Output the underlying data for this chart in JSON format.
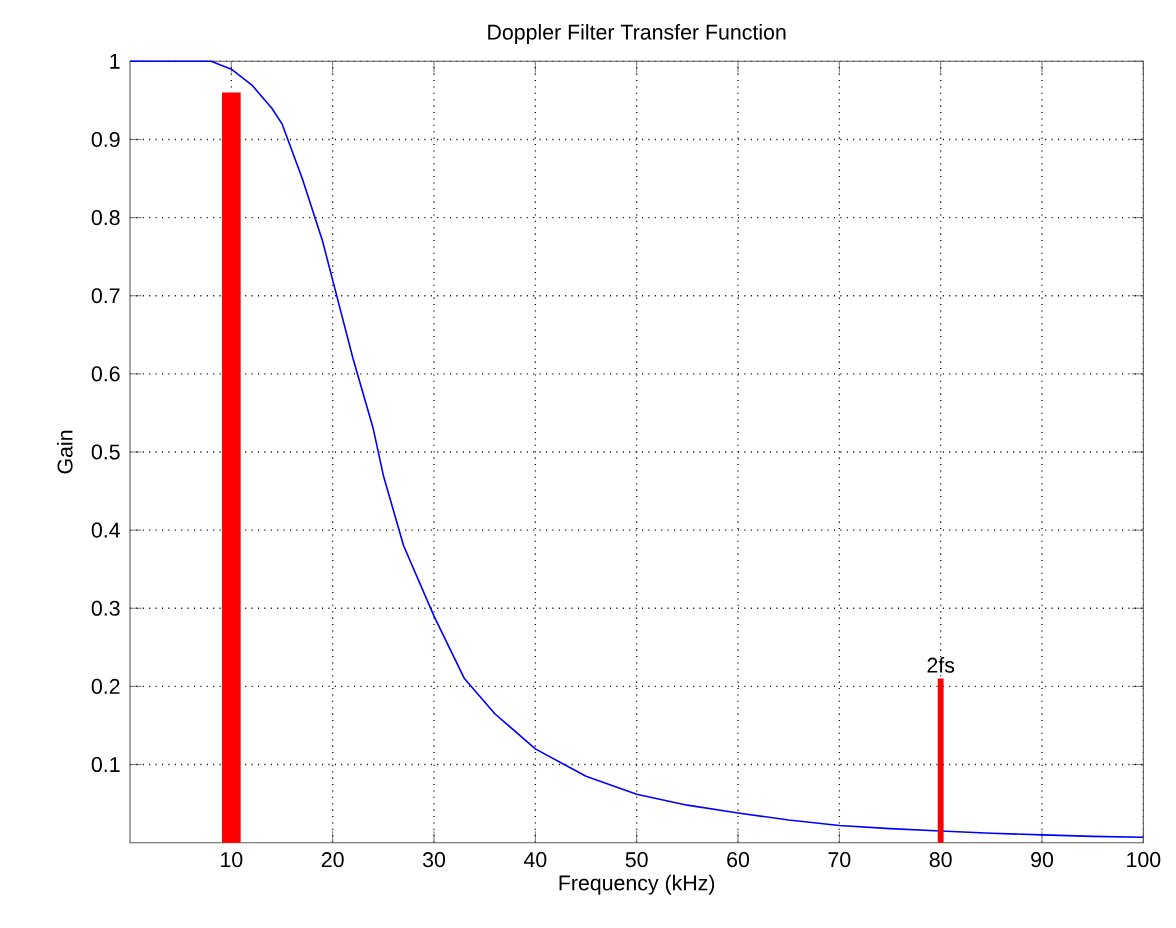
{
  "chart_data": {
    "type": "line",
    "title": "Doppler Filter Transfer Function",
    "xlabel": "Frequency (kHz)",
    "ylabel": "Gain",
    "xlim": [
      0,
      100
    ],
    "ylim": [
      0,
      1
    ],
    "xticks": [
      10,
      20,
      30,
      40,
      50,
      60,
      70,
      80,
      90,
      100
    ],
    "yticks": [
      0.1,
      0.2,
      0.3,
      0.4,
      0.5,
      0.6,
      0.7,
      0.8,
      0.9,
      1
    ],
    "grid": true,
    "series": [
      {
        "color": "#0000ff",
        "x": [
          0,
          5,
          8,
          10,
          12,
          14,
          15,
          17,
          19,
          20,
          22,
          24,
          25,
          27,
          30,
          33,
          36,
          40,
          45,
          50,
          55,
          60,
          65,
          70,
          75,
          80,
          85,
          90,
          95,
          100
        ],
        "values": [
          1,
          1,
          1,
          0.99,
          0.97,
          0.94,
          0.92,
          0.85,
          0.77,
          0.72,
          0.62,
          0.53,
          0.47,
          0.38,
          0.29,
          0.21,
          0.165,
          0.12,
          0.085,
          0.062,
          0.048,
          0.038,
          0.029,
          0.022,
          0.018,
          0.015,
          0.012,
          0.01,
          0.008,
          0.007
        ]
      },
      {
        "type": "bar",
        "color": "#ff0000",
        "x": [
          10
        ],
        "values": [
          0.96
        ]
      },
      {
        "type": "bar",
        "color": "#ff0000",
        "x": [
          80
        ],
        "values": [
          0.21
        ]
      }
    ],
    "annotations": [
      {
        "text": "2fs",
        "x": 80,
        "y": 0.21
      }
    ]
  }
}
